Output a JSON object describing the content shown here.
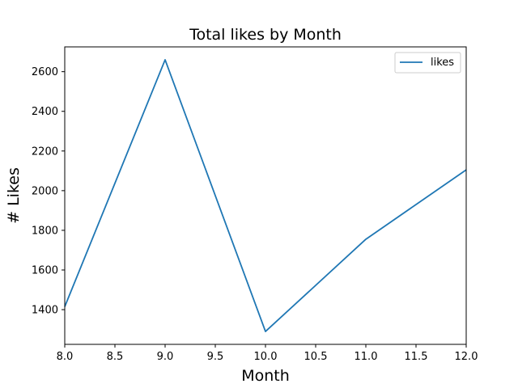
{
  "chart_data": {
    "type": "line",
    "title": "Total likes by Month",
    "xlabel": "Month",
    "ylabel": "# Likes",
    "xlim": [
      8.0,
      12.0
    ],
    "ylim": [
      1225,
      2725
    ],
    "x_ticks": [
      8.0,
      8.5,
      9.0,
      9.5,
      10.0,
      10.5,
      11.0,
      11.5,
      12.0
    ],
    "x_tick_labels": [
      "8.0",
      "8.5",
      "9.0",
      "9.5",
      "10.0",
      "10.5",
      "11.0",
      "11.5",
      "12.0"
    ],
    "y_ticks": [
      1400,
      1600,
      1800,
      2000,
      2200,
      2400,
      2600
    ],
    "y_tick_labels": [
      "1400",
      "1600",
      "1800",
      "2000",
      "2200",
      "2400",
      "2600"
    ],
    "grid": false,
    "legend_position": "top-right",
    "series": [
      {
        "name": "likes",
        "color": "#1f77b4",
        "x": [
          8,
          9,
          10,
          11,
          12
        ],
        "values": [
          1415,
          2660,
          1290,
          1755,
          2105
        ]
      }
    ]
  }
}
